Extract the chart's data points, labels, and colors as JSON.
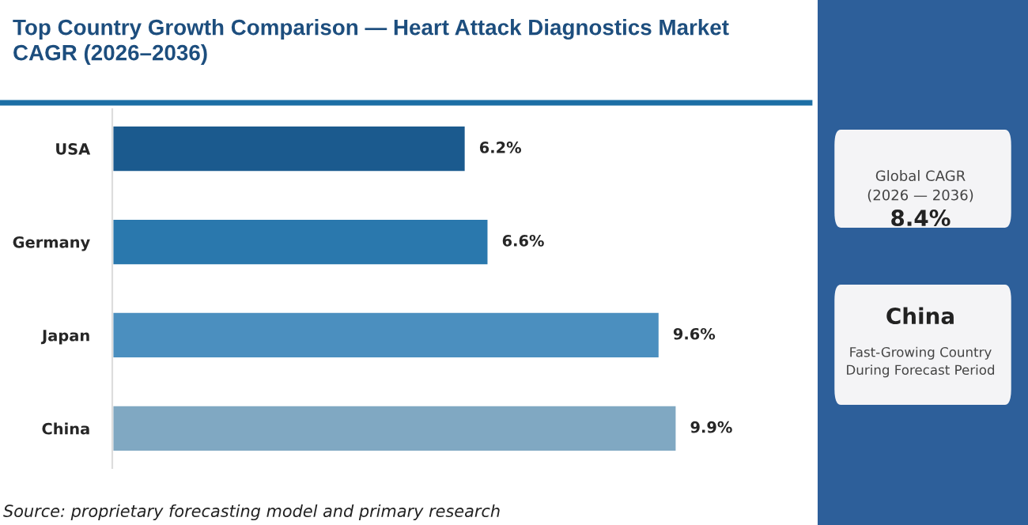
{
  "chart_data": {
    "type": "bar",
    "orientation": "horizontal",
    "title": "Top Country Growth Comparison — Heart Attack Diagnostics Market CAGR (2026–2036)",
    "categories": [
      "USA",
      "Germany",
      "Japan",
      "China"
    ],
    "values": [
      6.2,
      6.6,
      9.6,
      9.9
    ],
    "colors": [
      "#1b5a8e",
      "#2a78ad",
      "#4b8fbf",
      "#80a8c2"
    ],
    "value_labels": [
      "6.2%",
      "6.6%",
      "9.6%",
      "9.9%"
    ],
    "annotations": [
      "Source: proprietary forecasting model and primary research",
      "Global CAGR\n(2026 — 2036)",
      "8.4%",
      "China",
      "Fast-Growing Country\nDuring Forecast Period"
    ],
    "grid": false,
    "legend": false
  }
}
